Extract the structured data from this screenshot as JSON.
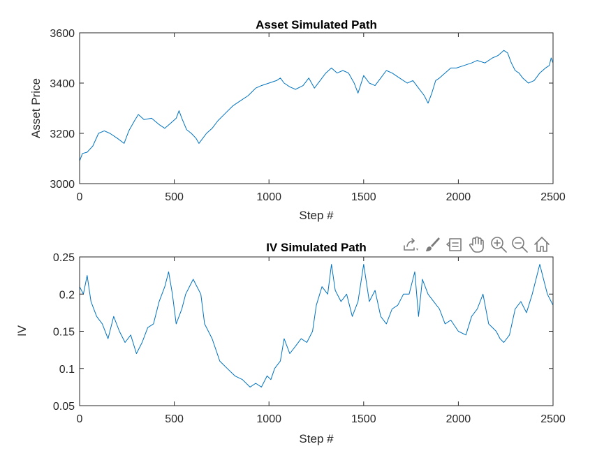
{
  "chart_data": [
    {
      "type": "line",
      "title": "Asset Simulated Path",
      "xlabel": "Step #",
      "ylabel": "Asset Price",
      "xlim": [
        0,
        2500
      ],
      "ylim": [
        3000,
        3600
      ],
      "xticks": [
        0,
        500,
        1000,
        1500,
        2000,
        2500
      ],
      "yticks": [
        3000,
        3200,
        3400,
        3600
      ],
      "xtick_labels": [
        "0",
        "500",
        "1000",
        "1500",
        "2000",
        "2500"
      ],
      "ytick_labels": [
        "3000",
        "3200",
        "3400",
        "3600"
      ],
      "grid": false,
      "color": "#0072BD",
      "series": [
        {
          "x": [
            0,
            15,
            40,
            70,
            100,
            130,
            160,
            200,
            235,
            260,
            290,
            310,
            340,
            380,
            420,
            450,
            480,
            510,
            525,
            540,
            565,
            590,
            615,
            630,
            650,
            670,
            700,
            730,
            770,
            810,
            850,
            890,
            930,
            960,
            1000,
            1040,
            1060,
            1080,
            1110,
            1140,
            1180,
            1210,
            1240,
            1270,
            1300,
            1330,
            1360,
            1390,
            1420,
            1450,
            1470,
            1500,
            1530,
            1560,
            1590,
            1620,
            1650,
            1690,
            1730,
            1760,
            1790,
            1820,
            1840,
            1860,
            1880,
            1900,
            1930,
            1960,
            1990,
            2030,
            2070,
            2100,
            2140,
            2180,
            2210,
            2240,
            2260,
            2280,
            2300,
            2320,
            2340,
            2370,
            2400,
            2430,
            2460,
            2480,
            2490,
            2500
          ],
          "y": [
            3090,
            3120,
            3125,
            3150,
            3200,
            3210,
            3200,
            3180,
            3160,
            3210,
            3250,
            3275,
            3255,
            3260,
            3235,
            3220,
            3240,
            3260,
            3290,
            3260,
            3215,
            3200,
            3180,
            3160,
            3180,
            3200,
            3220,
            3250,
            3280,
            3310,
            3330,
            3350,
            3380,
            3390,
            3400,
            3410,
            3420,
            3400,
            3385,
            3375,
            3390,
            3420,
            3380,
            3410,
            3440,
            3460,
            3440,
            3450,
            3440,
            3400,
            3360,
            3430,
            3400,
            3390,
            3420,
            3450,
            3440,
            3420,
            3400,
            3410,
            3380,
            3350,
            3320,
            3360,
            3410,
            3420,
            3440,
            3460,
            3460,
            3470,
            3480,
            3490,
            3480,
            3500,
            3510,
            3530,
            3520,
            3480,
            3450,
            3440,
            3420,
            3400,
            3410,
            3440,
            3460,
            3470,
            3500,
            3480
          ]
        }
      ]
    },
    {
      "type": "line",
      "title": "IV Simulated Path",
      "xlabel": "Step #",
      "ylabel": "IV",
      "xlim": [
        0,
        2500
      ],
      "ylim": [
        0.05,
        0.25
      ],
      "xticks": [
        0,
        500,
        1000,
        1500,
        2000,
        2500
      ],
      "yticks": [
        0.05,
        0.1,
        0.15,
        0.2,
        0.25
      ],
      "xtick_labels": [
        "0",
        "500",
        "1000",
        "1500",
        "2000",
        "2500"
      ],
      "ytick_labels": [
        "0.05",
        "0.1",
        "0.15",
        "0.2",
        "0.25"
      ],
      "grid": false,
      "color": "#0072BD",
      "series": [
        {
          "x": [
            0,
            20,
            40,
            60,
            90,
            120,
            150,
            180,
            210,
            240,
            270,
            300,
            330,
            360,
            390,
            420,
            450,
            470,
            490,
            510,
            540,
            560,
            580,
            600,
            620,
            640,
            660,
            700,
            740,
            780,
            820,
            860,
            900,
            930,
            960,
            990,
            1010,
            1030,
            1060,
            1080,
            1110,
            1140,
            1170,
            1200,
            1230,
            1250,
            1280,
            1310,
            1330,
            1350,
            1380,
            1410,
            1440,
            1470,
            1500,
            1530,
            1560,
            1590,
            1620,
            1650,
            1680,
            1710,
            1740,
            1770,
            1790,
            1810,
            1840,
            1870,
            1900,
            1930,
            1960,
            2000,
            2040,
            2070,
            2100,
            2130,
            2160,
            2200,
            2220,
            2240,
            2270,
            2300,
            2330,
            2360,
            2390,
            2410,
            2430,
            2450,
            2470,
            2490,
            2500
          ],
          "y": [
            0.21,
            0.2,
            0.225,
            0.19,
            0.17,
            0.16,
            0.14,
            0.17,
            0.15,
            0.135,
            0.145,
            0.12,
            0.135,
            0.155,
            0.16,
            0.19,
            0.21,
            0.23,
            0.2,
            0.16,
            0.18,
            0.2,
            0.21,
            0.22,
            0.21,
            0.2,
            0.16,
            0.14,
            0.11,
            0.1,
            0.09,
            0.085,
            0.075,
            0.08,
            0.075,
            0.09,
            0.085,
            0.1,
            0.11,
            0.14,
            0.12,
            0.13,
            0.14,
            0.135,
            0.15,
            0.185,
            0.21,
            0.2,
            0.24,
            0.205,
            0.19,
            0.2,
            0.17,
            0.19,
            0.24,
            0.19,
            0.205,
            0.17,
            0.16,
            0.18,
            0.185,
            0.2,
            0.2,
            0.23,
            0.17,
            0.22,
            0.2,
            0.19,
            0.18,
            0.16,
            0.165,
            0.15,
            0.145,
            0.17,
            0.18,
            0.2,
            0.16,
            0.15,
            0.14,
            0.135,
            0.145,
            0.18,
            0.19,
            0.175,
            0.2,
            0.22,
            0.24,
            0.22,
            0.2,
            0.19,
            0.185
          ]
        }
      ]
    }
  ],
  "toolbar": {
    "icons": [
      "export-icon",
      "brush-icon",
      "datatip-icon",
      "pan-hand-icon",
      "zoom-in-icon",
      "zoom-out-icon",
      "home-icon"
    ]
  }
}
